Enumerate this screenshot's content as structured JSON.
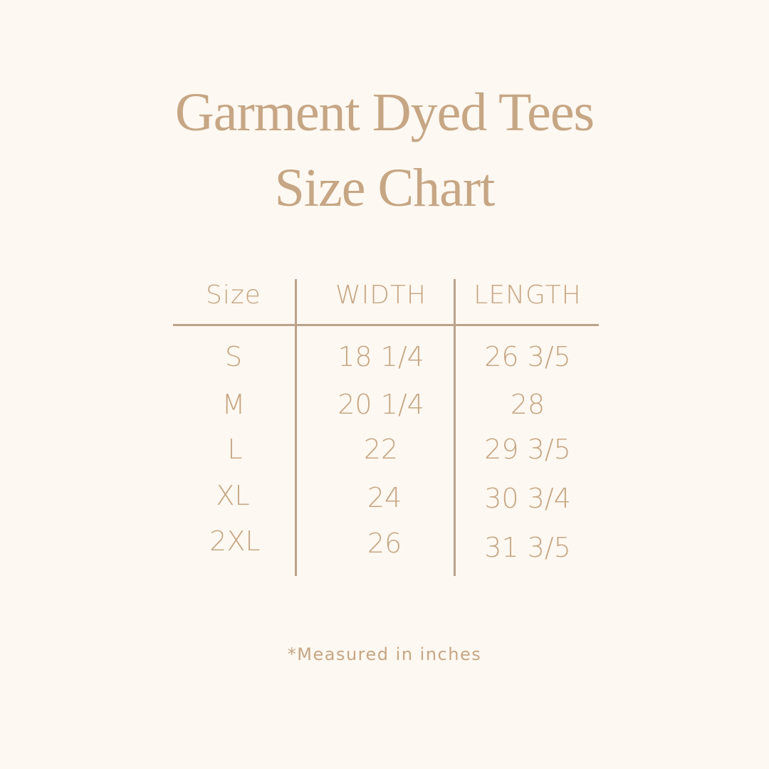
{
  "title": {
    "line1": "Garment Dyed Tees",
    "line2": "Size Chart"
  },
  "table": {
    "headers": [
      "Size",
      "WIDTH",
      "LENGTH"
    ],
    "rows": [
      [
        "S",
        "18 1/4",
        "26 3/5"
      ],
      [
        "M",
        "20 1/4",
        "28"
      ],
      [
        "L",
        "22",
        "29 3/5"
      ],
      [
        "XL",
        "24",
        "30 3/4"
      ],
      [
        "2XL",
        "26",
        "31 3/5"
      ]
    ]
  },
  "note": "*Measured in inches",
  "colors": {
    "background": "#fdf8f1",
    "text": "#c6a684",
    "lines": "#bba28b"
  }
}
